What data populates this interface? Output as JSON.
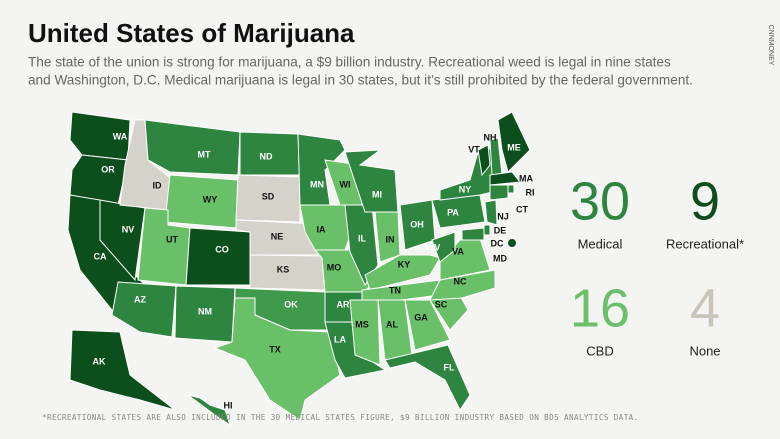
{
  "header": {
    "title": "United States of Marijuana",
    "subtitle_lines": [
      "The state of the union is strong for marijuana, a $9 billion industry. Recreational weed is legal in nine states",
      "and Washington, D.C. Medical marijuana is legal in 30 states, but it’s still prohibited by the federal government."
    ]
  },
  "map": {
    "states": [
      {
        "label": "WA",
        "color": "#0d4f1c"
      },
      {
        "label": "OR",
        "color": "#0d4f1c"
      },
      {
        "label": "CA",
        "color": "#0d4f1c"
      },
      {
        "label": "NV",
        "color": "#0d4f1c"
      },
      {
        "label": "ID",
        "color": "#d5d2ca"
      },
      {
        "label": "MT",
        "color": "#2e8540"
      },
      {
        "label": "WY",
        "color": "#6abf69"
      },
      {
        "label": "UT",
        "color": "#6abf69"
      },
      {
        "label": "CO",
        "color": "#0d4f1c"
      },
      {
        "label": "AZ",
        "color": "#2e8540"
      },
      {
        "label": "NM",
        "color": "#2e8540"
      },
      {
        "label": "ND",
        "color": "#2e8540"
      },
      {
        "label": "SD",
        "color": "#d5d2ca"
      },
      {
        "label": "NE",
        "color": "#d5d2ca"
      },
      {
        "label": "KS",
        "color": "#d5d2ca"
      },
      {
        "label": "OK",
        "color": "#3f9a4c"
      },
      {
        "label": "TX",
        "color": "#6abf69"
      },
      {
        "label": "MN",
        "color": "#2e8540"
      },
      {
        "label": "IA",
        "color": "#6abf69"
      },
      {
        "label": "MO",
        "color": "#6abf69"
      },
      {
        "label": "AR",
        "color": "#2e8540"
      },
      {
        "label": "LA",
        "color": "#2e8540"
      },
      {
        "label": "WI",
        "color": "#6abf69"
      },
      {
        "label": "IL",
        "color": "#2e8540"
      },
      {
        "label": "MI",
        "color": "#2e8540"
      },
      {
        "label": "IN",
        "color": "#6abf69"
      },
      {
        "label": "OH",
        "color": "#2e8540"
      },
      {
        "label": "KY",
        "color": "#6abf69"
      },
      {
        "label": "TN",
        "color": "#6abf69"
      },
      {
        "label": "MS",
        "color": "#6abf69"
      },
      {
        "label": "AL",
        "color": "#6abf69"
      },
      {
        "label": "GA",
        "color": "#6abf69"
      },
      {
        "label": "FL",
        "color": "#2e8540"
      },
      {
        "label": "SC",
        "color": "#6abf69"
      },
      {
        "label": "NC",
        "color": "#6abf69"
      },
      {
        "label": "VA",
        "color": "#6abf69"
      },
      {
        "label": "WV",
        "color": "#2e8540"
      },
      {
        "label": "PA",
        "color": "#2e8540"
      },
      {
        "label": "NY",
        "color": "#2e8540"
      },
      {
        "label": "VT",
        "color": "#0d4f1c"
      },
      {
        "label": "NH",
        "color": "#2e8540"
      },
      {
        "label": "ME",
        "color": "#0d4f1c"
      },
      {
        "label": "MA",
        "color": "#0d4f1c"
      },
      {
        "label": "RI",
        "color": "#2e8540"
      },
      {
        "label": "CT",
        "color": "#2e8540"
      },
      {
        "label": "NJ",
        "color": "#2e8540"
      },
      {
        "label": "DE",
        "color": "#2e8540"
      },
      {
        "label": "MD",
        "color": "#2e8540"
      },
      {
        "label": "AK",
        "color": "#0d4f1c"
      },
      {
        "label": "HI",
        "color": "#2e8540"
      }
    ],
    "dc": {
      "label": "DC",
      "color": "#0d4f1c"
    }
  },
  "stats": [
    {
      "value": 30,
      "label": "Medical",
      "color": "#2e8540"
    },
    {
      "value": 9,
      "label": "Recreational*",
      "color": "#0d4f1c"
    },
    {
      "value": 16,
      "label": "CBD",
      "color": "#6abf69"
    },
    {
      "value": 4,
      "label": "None",
      "color": "#c9c5bd"
    }
  ],
  "footnote": "*RECREATIONAL STATES ARE ALSO INCLUDED IN THE 30 MEDICAL STATES FIGURE, $9 BILLION INDUSTRY BASED ON BDS ANALYTICS DATA.",
  "watermark": "CNNMONEY"
}
